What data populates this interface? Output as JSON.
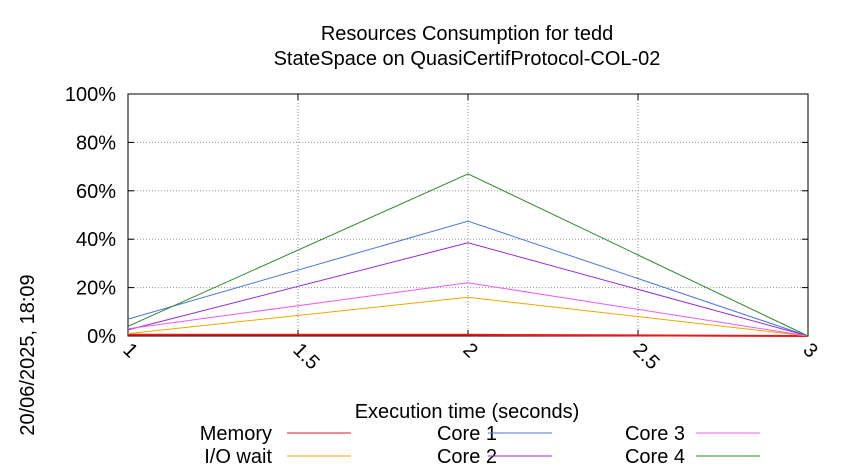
{
  "chart_data": {
    "type": "line",
    "title": "Resources Consumption for tedd",
    "subtitle": "StateSpace on QuasiCertifProtocol-COL-02",
    "xlabel": "Execution time (seconds)",
    "ylabel": "",
    "side_label": "20/06/2025, 18:09",
    "xlim": [
      1,
      3
    ],
    "ylim": [
      0,
      100
    ],
    "x_ticks": [
      "1",
      "1.5",
      "2",
      "2.5",
      "3"
    ],
    "y_ticks": [
      "0%",
      "20%",
      "40%",
      "60%",
      "80%",
      "100%"
    ],
    "grid": true,
    "legend_position": "bottom",
    "x": [
      1,
      2,
      3
    ],
    "series": [
      {
        "name": "Memory",
        "color": "#e41a1c",
        "values": [
          0.5,
          0.5,
          0
        ]
      },
      {
        "name": "I/O wait",
        "color": "#f0a800",
        "values": [
          1,
          16,
          0
        ]
      },
      {
        "name": "Core 1",
        "color": "#4a78d8",
        "values": [
          7,
          47.5,
          0
        ]
      },
      {
        "name": "Core 2",
        "color": "#9a2ad6",
        "values": [
          2.5,
          38.5,
          0
        ]
      },
      {
        "name": "Core 3",
        "color": "#f05cf0",
        "values": [
          3,
          22,
          0
        ]
      },
      {
        "name": "Core 4",
        "color": "#2a8a2a",
        "values": [
          4,
          67,
          0
        ]
      }
    ]
  }
}
